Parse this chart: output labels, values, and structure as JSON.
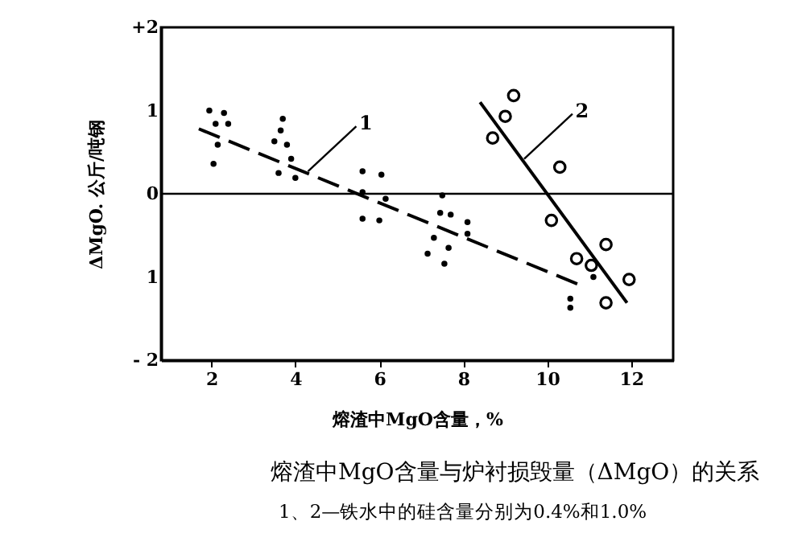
{
  "chart_data": {
    "type": "scatter",
    "xlabel": "熔渣中MgO含量，%",
    "ylabel": "ΔMgO. 公斤/吨钢",
    "xlim": [
      0.8,
      13
    ],
    "xticks": [
      2,
      4,
      6,
      8,
      10,
      12
    ],
    "ylim": [
      -2,
      2
    ],
    "yticks": [
      {
        "value": -2,
        "label": "- 2"
      },
      {
        "value": -1,
        "label": "1"
      },
      0,
      1,
      {
        "value": 2,
        "label": "+2"
      }
    ],
    "grid": false,
    "marker": "circle",
    "series": [
      {
        "type": "scatter",
        "color": "#000000",
        "x": [
          1.95,
          2.3,
          2.4,
          2.1,
          2.15,
          2.05,
          3.7,
          3.65,
          3.5,
          3.8,
          3.9,
          3.6,
          4.0,
          5.6,
          6.05,
          5.6,
          5.6,
          6.0,
          6.15,
          7.5,
          7.45,
          7.7,
          8.1,
          8.1,
          7.3,
          7.65,
          7.15,
          7.55,
          11.1,
          10.55,
          10.55
        ],
        "values": [
          1.0,
          0.97,
          0.84,
          0.84,
          0.59,
          0.36,
          0.9,
          0.76,
          0.63,
          0.59,
          0.42,
          0.25,
          0.19,
          0.27,
          0.23,
          0.02,
          -0.3,
          -0.32,
          -0.06,
          -0.02,
          -0.23,
          -0.25,
          -0.34,
          -0.48,
          -0.53,
          -0.65,
          -0.72,
          -0.84,
          -1.0,
          -1.26,
          -1.37
        ]
      },
      {
        "type": "scatter",
        "color": "#000000",
        "x": [
          9.2,
          9.0,
          8.7,
          10.3,
          10.1,
          10.7,
          11.05,
          11.4,
          11.95,
          11.4
        ],
        "values": [
          1.18,
          0.93,
          0.67,
          0.32,
          -0.32,
          -0.78,
          -0.86,
          -0.61,
          -1.03,
          -1.31
        ]
      },
      {
        "type": "line",
        "color": "#000000",
        "marker": "none",
        "line_style": "dashed",
        "x": [
          1.7,
          10.8
        ],
        "values": [
          0.78,
          -1.1
        ]
      },
      {
        "type": "line",
        "color": "#000000",
        "marker": "none",
        "line_style": "solid",
        "x": [
          8.4,
          11.9
        ],
        "values": [
          1.1,
          -1.31
        ]
      }
    ],
    "ref_lines": [
      {
        "axis": "y",
        "value": 0
      }
    ],
    "annotations": [
      {
        "text": "1",
        "x": 4.3,
        "y": 0.27
      },
      {
        "text": "2",
        "x": 9.45,
        "y": 0.42
      },
      "熔渣中MgO含量与炉衬损毁量（ΔMgO）的关系",
      "1、2—铁水中的硅含量分别为0.4%和1.0%"
    ]
  }
}
